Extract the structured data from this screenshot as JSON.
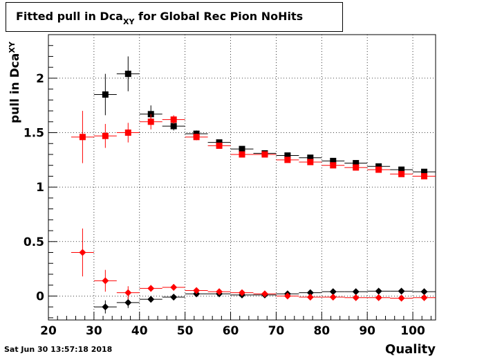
{
  "chart_data": {
    "type": "scatter",
    "title": {
      "main": "Fitted pull in Dca",
      "sub": "XY",
      "rest": " for Global Rec Pion NoHits"
    },
    "xlabel": "Quality",
    "ylabel": {
      "main": "pull in Dca",
      "sub": "XY"
    },
    "xlim": [
      20,
      105
    ],
    "ylim": [
      -0.22,
      2.4
    ],
    "x_ticks": [
      20,
      30,
      40,
      50,
      60,
      70,
      80,
      90,
      100
    ],
    "y_ticks": [
      0,
      0.5,
      1,
      1.5,
      2
    ],
    "y_tick_labels": [
      "0",
      "0.5",
      "1",
      "1.5",
      "2"
    ],
    "grid": true,
    "bin_half_width": 2.5,
    "series": [
      {
        "marker": "square",
        "color": "#000000",
        "x": [
          32.5,
          37.5,
          42.5,
          47.5,
          52.5,
          57.5,
          62.5,
          67.5,
          72.5,
          77.5,
          82.5,
          87.5,
          92.5,
          97.5,
          102.5
        ],
        "y": [
          1.85,
          2.04,
          1.67,
          1.56,
          1.49,
          1.41,
          1.35,
          1.31,
          1.29,
          1.27,
          1.24,
          1.22,
          1.19,
          1.16,
          1.14
        ],
        "err": [
          0.19,
          0.16,
          0.08,
          0.04,
          0.03,
          0.02,
          0.02,
          0.02,
          0.02,
          0.02,
          0.02,
          0.01,
          0.01,
          0.01,
          0.01
        ]
      },
      {
        "marker": "square",
        "color": "#ff0000",
        "x": [
          27.5,
          32.5,
          37.5,
          42.5,
          47.5,
          52.5,
          57.5,
          62.5,
          67.5,
          72.5,
          77.5,
          82.5,
          87.5,
          92.5,
          97.5,
          102.5
        ],
        "y": [
          1.46,
          1.47,
          1.5,
          1.6,
          1.62,
          1.46,
          1.38,
          1.3,
          1.3,
          1.25,
          1.23,
          1.2,
          1.18,
          1.16,
          1.12,
          1.1
        ],
        "err": [
          0.24,
          0.11,
          0.09,
          0.07,
          0.04,
          0.03,
          0.02,
          0.02,
          0.02,
          0.02,
          0.02,
          0.02,
          0.01,
          0.01,
          0.01,
          0.01
        ]
      },
      {
        "marker": "diamond",
        "color": "#000000",
        "x": [
          32.5,
          37.5,
          42.5,
          47.5,
          52.5,
          57.5,
          62.5,
          67.5,
          72.5,
          77.5,
          82.5,
          87.5,
          92.5,
          97.5,
          102.5
        ],
        "y": [
          -0.1,
          -0.06,
          -0.03,
          -0.01,
          0.02,
          0.02,
          0.01,
          0.01,
          0.02,
          0.03,
          0.04,
          0.04,
          0.045,
          0.045,
          0.04
        ],
        "err": [
          0.06,
          0.05,
          0.03,
          0.02,
          0.01,
          0.01,
          0.01,
          0.01,
          0.01,
          0.01,
          0.01,
          0.01,
          0.01,
          0.01,
          0.01
        ]
      },
      {
        "marker": "diamond",
        "color": "#ff0000",
        "x": [
          27.5,
          32.5,
          37.5,
          42.5,
          47.5,
          52.5,
          57.5,
          62.5,
          67.5,
          72.5,
          77.5,
          82.5,
          87.5,
          92.5,
          97.5,
          102.5
        ],
        "y": [
          0.4,
          0.14,
          0.03,
          0.07,
          0.08,
          0.05,
          0.04,
          0.03,
          0.02,
          0.0,
          -0.01,
          -0.01,
          -0.015,
          -0.015,
          -0.02,
          -0.015
        ],
        "err": [
          0.22,
          0.1,
          0.06,
          0.03,
          0.03,
          0.02,
          0.02,
          0.01,
          0.01,
          0.01,
          0.01,
          0.01,
          0.01,
          0.01,
          0.01,
          0.01
        ]
      }
    ]
  },
  "footer": {
    "timestamp": "Sat Jun 30 13:57:18 2018"
  }
}
